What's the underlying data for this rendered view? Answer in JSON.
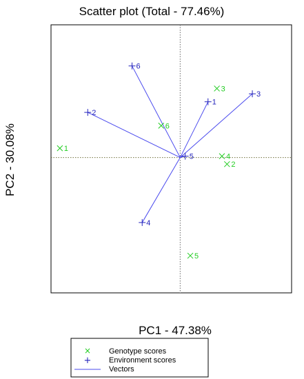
{
  "chart_data": {
    "type": "scatter",
    "title": "Scatter plot (Total - 77.46%)",
    "xlabel": "PC1 - 47.38%",
    "ylabel": "PC2 - 30.08%",
    "xlim": [
      -1.02,
      0.88
    ],
    "ylim": [
      -1.02,
      1.0
    ],
    "grid": false,
    "legend_position": "bottom",
    "colors": {
      "genotype": "#22cc22",
      "environment": "#2222bb",
      "vector": "#4a4aee",
      "axis_line": "#666666",
      "frame": "#000000"
    },
    "series": [
      {
        "name": "Genotype scores",
        "marker": "x",
        "points": [
          {
            "label": "1",
            "x": -0.95,
            "y": 0.07
          },
          {
            "label": "2",
            "x": 0.37,
            "y": -0.05
          },
          {
            "label": "3",
            "x": 0.29,
            "y": 0.52
          },
          {
            "label": "4",
            "x": 0.33,
            "y": 0.01
          },
          {
            "label": "5",
            "x": 0.08,
            "y": -0.74
          },
          {
            "label": "6",
            "x": -0.15,
            "y": 0.24
          }
        ]
      },
      {
        "name": "Environment scores",
        "marker": "+",
        "vectors": true,
        "points": [
          {
            "label": "1",
            "x": 0.22,
            "y": 0.42
          },
          {
            "label": "2",
            "x": -0.73,
            "y": 0.34
          },
          {
            "label": "3",
            "x": 0.57,
            "y": 0.48
          },
          {
            "label": "4",
            "x": -0.3,
            "y": -0.49
          },
          {
            "label": "5",
            "x": 0.04,
            "y": 0.01
          },
          {
            "label": "6",
            "x": -0.38,
            "y": 0.69
          }
        ]
      }
    ],
    "legend": [
      {
        "symbol": "×",
        "label": "Genotype scores",
        "kind": "genotype"
      },
      {
        "symbol": "+",
        "label": "Environment scores",
        "kind": "environment"
      },
      {
        "symbol": "line",
        "label": "Vectors",
        "kind": "vector"
      }
    ]
  }
}
